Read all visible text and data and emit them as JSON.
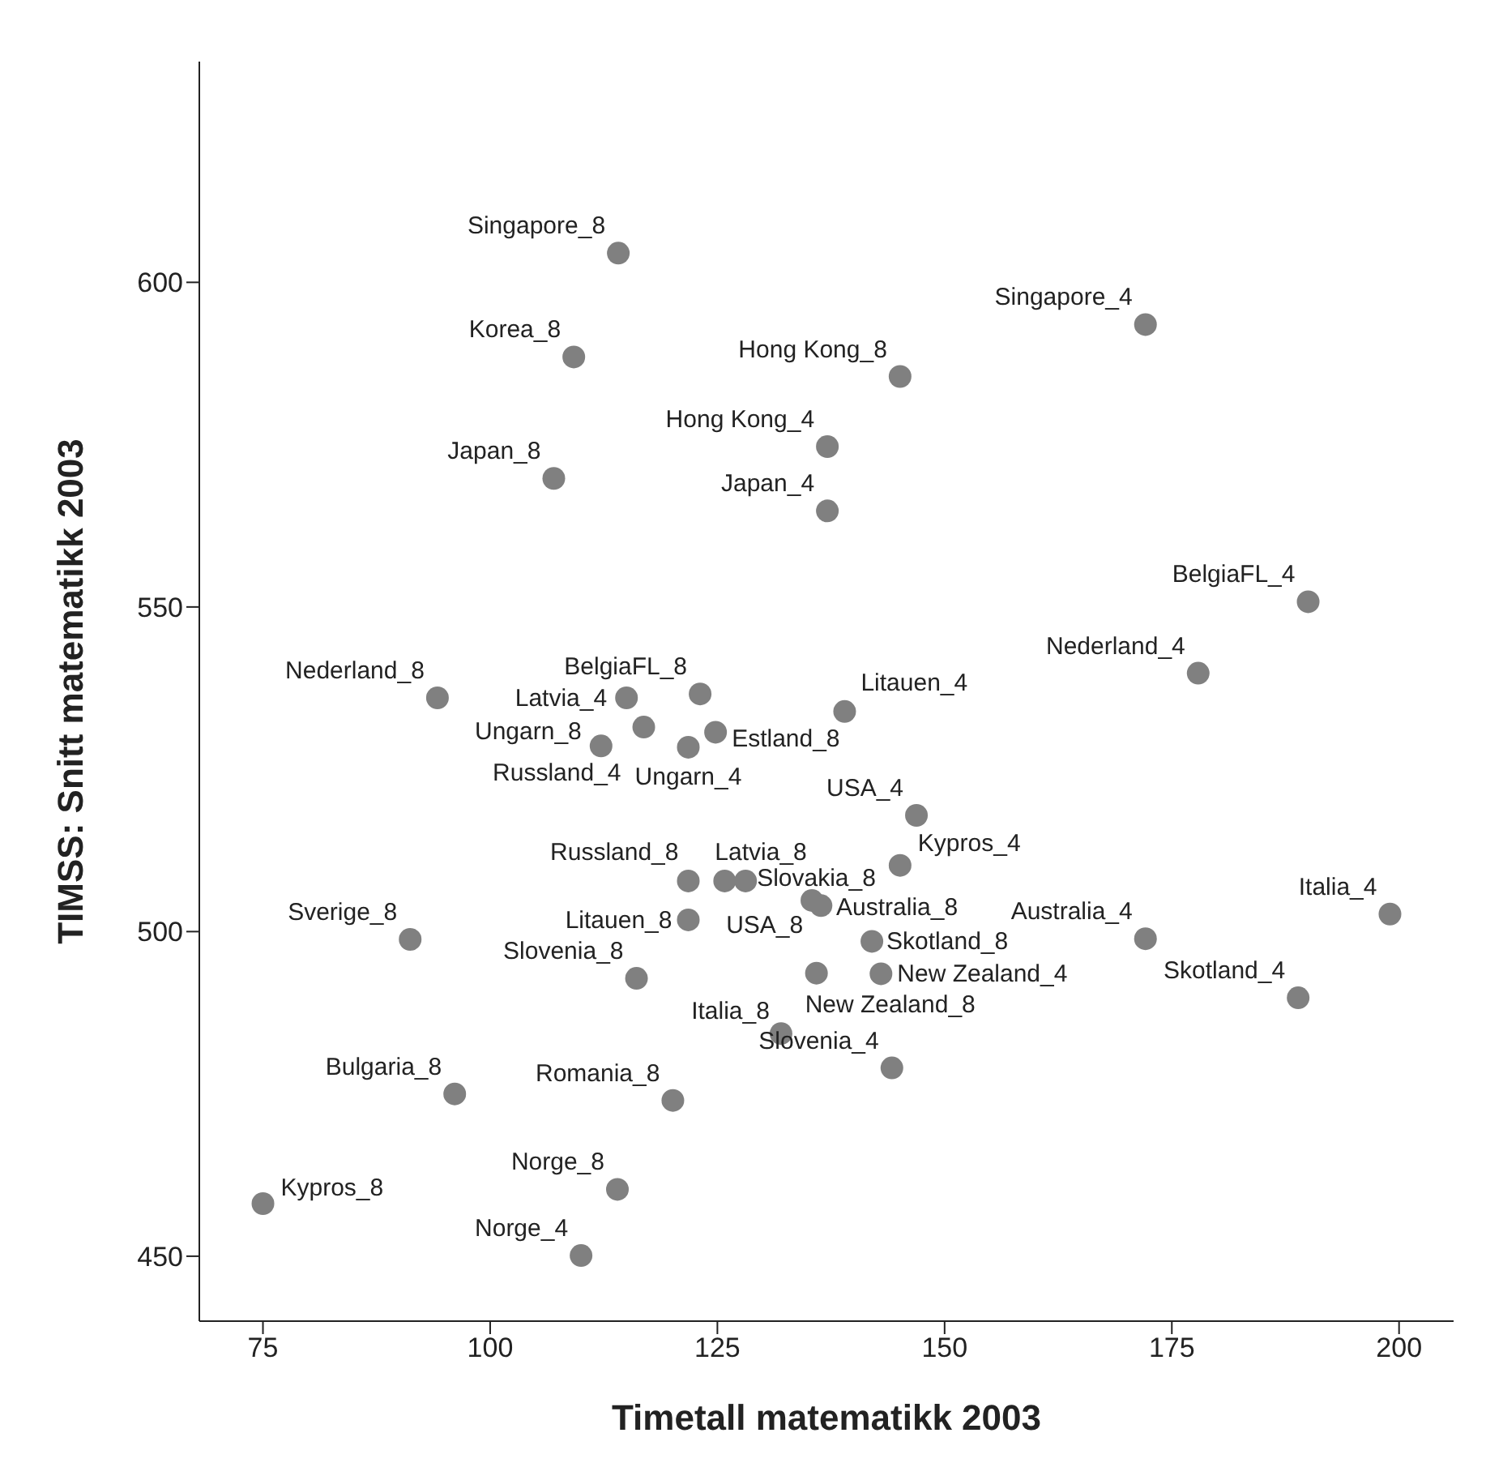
{
  "chart_data": {
    "type": "scatter",
    "xlabel": "Timetall matematikk 2003",
    "ylabel": "TIMSS: Snitt matematikk 2003",
    "x": [
      114.1,
      109.2,
      107.0,
      137.1,
      137.1,
      172.1,
      145.1,
      190.0,
      177.9,
      139.0,
      94.2,
      123.1,
      115.0,
      116.9,
      112.2,
      121.8,
      124.8,
      121.8,
      125.8,
      128.1,
      121.8,
      135.4,
      136.4,
      145.1,
      146.9,
      142.0,
      143.0,
      172.1,
      91.2,
      116.1,
      135.9,
      188.9,
      199.0,
      132.0,
      144.2,
      96.1,
      120.1,
      114.0,
      75.0,
      110.0
    ],
    "series": [
      {
        "color": "#808080",
        "values": [
          604.5,
          588.5,
          569.8,
          574.7,
          564.8,
          593.5,
          585.5,
          550.8,
          539.8,
          533.9,
          536.0,
          536.6,
          536.0,
          531.5,
          528.6,
          528.4,
          530.7,
          507.8,
          507.8,
          507.8,
          501.8,
          504.8,
          504.0,
          510.2,
          517.9,
          498.5,
          493.5,
          498.9,
          498.8,
          492.8,
          493.6,
          489.8,
          502.7,
          484.3,
          479.0,
          475.0,
          474.0,
          460.3,
          458.1,
          450.1
        ]
      }
    ],
    "annotations": [
      {
        "text": "Singapore_8",
        "x": 114.1,
        "y": 604.5
      },
      {
        "text": "Korea_8",
        "x": 109.2,
        "y": 588.5
      },
      {
        "text": "Japan_8",
        "x": 107.0,
        "y": 569.8
      },
      {
        "text": "Hong Kong_4",
        "x": 137.1,
        "y": 574.7
      },
      {
        "text": "Japan_4",
        "x": 137.1,
        "y": 564.8
      },
      {
        "text": "Singapore_4",
        "x": 172.1,
        "y": 593.5
      },
      {
        "text": "Hong Kong_8",
        "x": 145.1,
        "y": 585.5
      },
      {
        "text": "BelgiaFL_4",
        "x": 190.0,
        "y": 550.8
      },
      {
        "text": "Nederland_4",
        "x": 177.9,
        "y": 539.8
      },
      {
        "text": "Litauen_4",
        "x": 139.0,
        "y": 533.9
      },
      {
        "text": "Nederland_8",
        "x": 94.2,
        "y": 536.0
      },
      {
        "text": "BelgiaFL_8",
        "x": 123.1,
        "y": 536.6
      },
      {
        "text": "Latvia_4",
        "x": 115.0,
        "y": 536.0
      },
      {
        "text": "Russland_4",
        "x": 116.9,
        "y": 531.5
      },
      {
        "text": "Ungarn_8",
        "x": 112.2,
        "y": 528.6
      },
      {
        "text": "Ungarn_4",
        "x": 121.8,
        "y": 528.4
      },
      {
        "text": "Estland_8",
        "x": 124.8,
        "y": 530.7
      },
      {
        "text": "Russland_8",
        "x": 121.8,
        "y": 507.8
      },
      {
        "text": "Latvia_8",
        "x": 125.8,
        "y": 507.8
      },
      {
        "text": "Slovakia_8",
        "x": 128.1,
        "y": 507.8
      },
      {
        "text": "Litauen_8",
        "x": 121.8,
        "y": 501.8
      },
      {
        "text": "Australia_8",
        "x": 135.4,
        "y": 504.8
      },
      {
        "text": "USA_8",
        "x": 136.4,
        "y": 504.0
      },
      {
        "text": "Kypros_4",
        "x": 145.1,
        "y": 510.2
      },
      {
        "text": "USA_4",
        "x": 146.9,
        "y": 517.9
      },
      {
        "text": "Skotland_8",
        "x": 142.0,
        "y": 498.5
      },
      {
        "text": "New Zealand_4",
        "x": 143.0,
        "y": 493.5
      },
      {
        "text": "Australia_4",
        "x": 172.1,
        "y": 498.9
      },
      {
        "text": "Sverige_8",
        "x": 91.2,
        "y": 498.8
      },
      {
        "text": "Slovenia_8",
        "x": 116.1,
        "y": 492.8
      },
      {
        "text": "New Zealand_8",
        "x": 135.9,
        "y": 493.6
      },
      {
        "text": "Skotland_4",
        "x": 188.9,
        "y": 489.8
      },
      {
        "text": "Italia_4",
        "x": 199.0,
        "y": 502.7
      },
      {
        "text": "Italia_8",
        "x": 132.0,
        "y": 484.3
      },
      {
        "text": "Slovenia_4",
        "x": 144.2,
        "y": 479.0
      },
      {
        "text": "Bulgaria_8",
        "x": 96.1,
        "y": 475.0
      },
      {
        "text": "Romania_8",
        "x": 120.1,
        "y": 474.0
      },
      {
        "text": "Norge_8",
        "x": 114.0,
        "y": 460.3
      },
      {
        "text": "Kypros_8",
        "x": 75.0,
        "y": 458.1
      },
      {
        "text": "Norge_4",
        "x": 110.0,
        "y": 450.1
      }
    ],
    "xlim": [
      68,
      206
    ],
    "ylim": [
      440,
      634
    ],
    "xticks": [
      75,
      100,
      125,
      150,
      175,
      200
    ],
    "yticks": [
      450,
      500,
      550,
      600
    ],
    "grid": false,
    "marker": "circle"
  }
}
